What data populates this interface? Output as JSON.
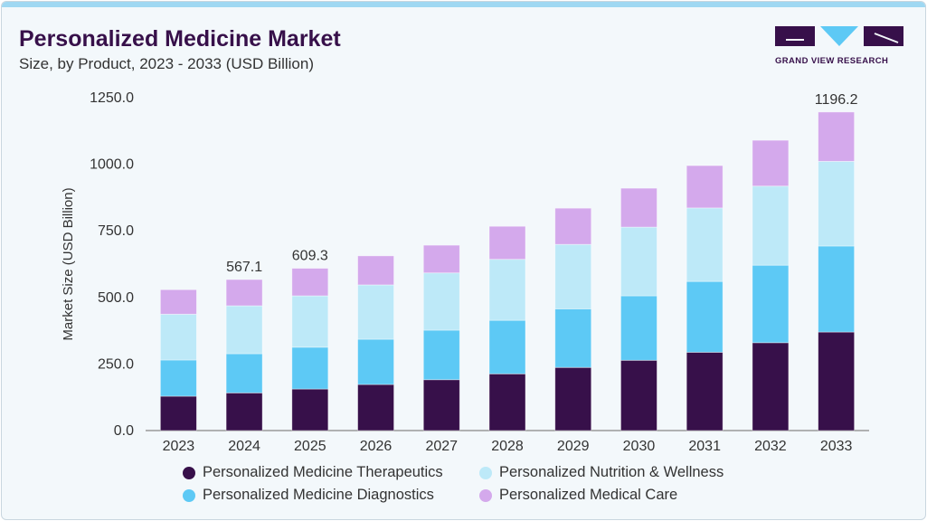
{
  "header": {
    "title": "Personalized Medicine Market",
    "subtitle": "Size, by Product, 2023 - 2033 (USD Billion)"
  },
  "logo": {
    "text": "GRAND VIEW RESEARCH"
  },
  "chart_data": {
    "type": "bar",
    "stacked": true,
    "categories": [
      "2023",
      "2024",
      "2025",
      "2026",
      "2027",
      "2028",
      "2029",
      "2030",
      "2031",
      "2032",
      "2033"
    ],
    "ylabel": "Market Size (USD Billion)",
    "xlabel": "",
    "ylim": [
      0,
      1250
    ],
    "yticks": [
      "0.0",
      "250.0",
      "500.0",
      "750.0",
      "1000.0",
      "1250.0"
    ],
    "grid": false,
    "legend_position": "bottom",
    "series": [
      {
        "name": "Personalized Medicine Therapeutics",
        "color": "#37104a",
        "values": [
          129,
          141.5,
          156,
          173,
          191,
          213,
          237,
          264,
          294,
          330,
          370
        ]
      },
      {
        "name": "Personalized Medicine Diagnostics",
        "color": "#5dc9f5",
        "values": [
          136,
          147.1,
          157,
          170,
          186,
          201,
          220,
          242,
          266,
          291,
          323
        ]
      },
      {
        "name": "Personalized Nutrition & Wellness",
        "color": "#bde9f8",
        "values": [
          172,
          180,
          193,
          204,
          215,
          229,
          242,
          258,
          276,
          297,
          318
        ]
      },
      {
        "name": "Personalized Medical Care",
        "color": "#d4a9ec",
        "values": [
          92,
          98.5,
          103.3,
          109,
          104,
          124,
          136,
          146,
          159,
          172,
          185.2
        ]
      }
    ],
    "data_labels": [
      {
        "category": "2024",
        "text": "567.1"
      },
      {
        "category": "2025",
        "text": "609.3"
      },
      {
        "category": "2033",
        "text": "1196.2"
      }
    ]
  }
}
